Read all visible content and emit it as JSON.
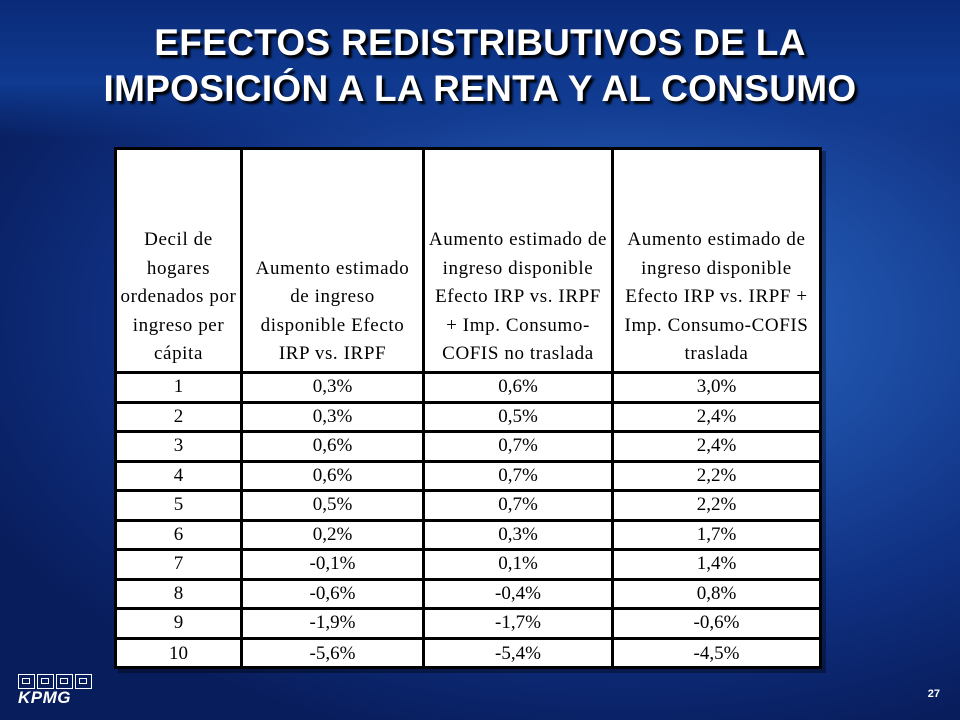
{
  "slide": {
    "title_line1": "EFECTOS REDISTRIBUTIVOS DE LA",
    "title_line2": "IMPOSICIÓN A LA RENTA Y AL CONSUMO",
    "page_number": "27",
    "logo_text": "KPMG",
    "background_color": "#1d4ea6"
  },
  "table": {
    "headers": [
      "Decil de hogares ordenados por ingreso per cápita",
      "Aumento estimado de ingreso disponible Efecto IRP vs. IRPF",
      "Aumento estimado de ingreso disponible Efecto IRP vs. IRPF + Imp. Consumo-COFIS no traslada",
      "Aumento estimado de ingreso disponible Efecto IRP vs. IRPF + Imp. Consumo-COFIS traslada"
    ],
    "rows": [
      [
        "1",
        "0,3%",
        "0,6%",
        "3,0%"
      ],
      [
        "2",
        "0,3%",
        "0,5%",
        "2,4%"
      ],
      [
        "3",
        "0,6%",
        "0,7%",
        "2,4%"
      ],
      [
        "4",
        "0,6%",
        "0,7%",
        "2,2%"
      ],
      [
        "5",
        "0,5%",
        "0,7%",
        "2,2%"
      ],
      [
        "6",
        "0,2%",
        "0,3%",
        "1,7%"
      ],
      [
        "7",
        "-0,1%",
        "0,1%",
        "1,4%"
      ],
      [
        "8",
        "-0,6%",
        "-0,4%",
        "0,8%"
      ],
      [
        "9",
        "-1,9%",
        "-1,7%",
        "-0,6%"
      ],
      [
        "10",
        "-5,6%",
        "-5,4%",
        "-4,5%"
      ]
    ]
  }
}
